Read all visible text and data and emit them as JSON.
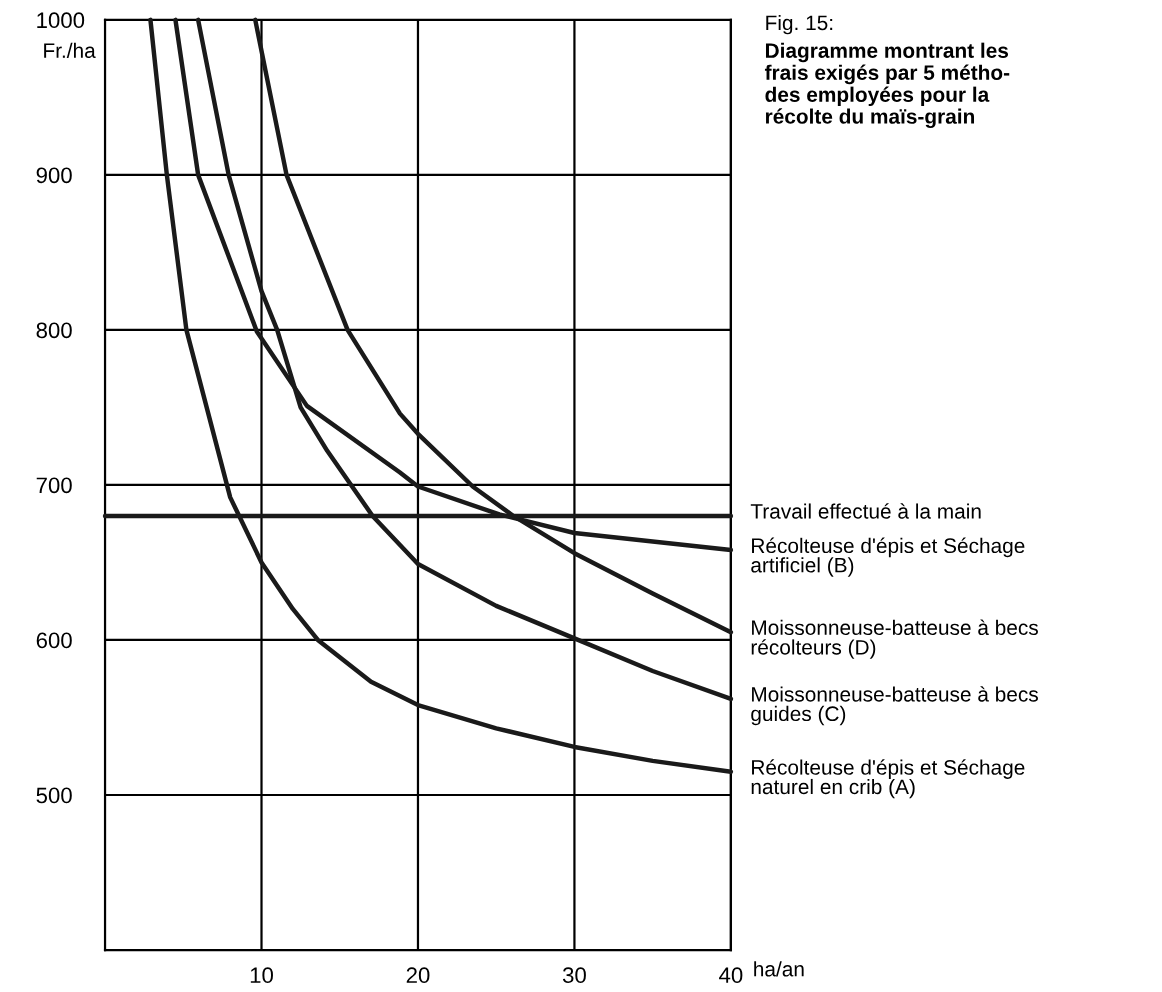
{
  "chart_data": {
    "type": "line",
    "title": "Fig. 15:",
    "subtitle": "Diagramme montrant les\nfrais exigés par 5 métho-\ndes employées pour la\nrécolte du maïs-grain",
    "xlabel": "ha/an",
    "ylabel": "Fr./ha",
    "xlim": [
      0,
      40
    ],
    "xticks": [
      10,
      20,
      30,
      40
    ],
    "ylim": [
      400,
      1000
    ],
    "yticks": [
      500,
      600,
      700,
      800,
      900,
      1000
    ],
    "grid": true,
    "marker": "none",
    "line_style": "solid",
    "series": [
      {
        "name": "Travail effectué à la main",
        "color": "#1a1a1a",
        "x": [
          0,
          40
        ],
        "values": [
          680,
          680
        ]
      },
      {
        "name": "Récolteuse d'épis et Séchage\nartificiel (B)",
        "color": "#1a1a1a",
        "x": [
          4.5,
          5.95,
          9.7,
          12.9,
          18.85,
          20,
          25.2,
          30,
          40
        ],
        "values": [
          1000,
          900,
          799,
          751,
          708,
          699,
          681,
          669,
          658
        ]
      },
      {
        "name": "Moissonneuse-batteuse à becs\nrécolteurs (D)",
        "color": "#1a1a1a",
        "x": [
          9.6,
          11.6,
          15.5,
          18.85,
          20,
          23.5,
          26.1,
          30,
          35,
          40
        ],
        "values": [
          1000,
          900,
          800,
          746,
          733,
          699,
          680,
          656,
          630,
          605
        ]
      },
      {
        "name": "Moissonneuse-batteuse à becs\nguides (C)",
        "color": "#1a1a1a",
        "x": [
          5.95,
          7.9,
          10,
          11,
          12.5,
          14.2,
          17.1,
          20,
          25,
          30,
          35,
          40
        ],
        "values": [
          1000,
          900,
          825,
          800,
          750,
          722,
          680,
          649,
          622,
          601,
          580,
          562
        ]
      },
      {
        "name": "Récolteuse d'épis et Séchage\nnaturel en crib (A)",
        "color": "#1a1a1a",
        "x": [
          2.9,
          3.95,
          5.2,
          8.0,
          10,
          12,
          13.6,
          17,
          20,
          25,
          30,
          35,
          40
        ],
        "values": [
          1000,
          900,
          800,
          692,
          650,
          620,
          600,
          573,
          558,
          543,
          531,
          522,
          515
        ]
      }
    ]
  }
}
